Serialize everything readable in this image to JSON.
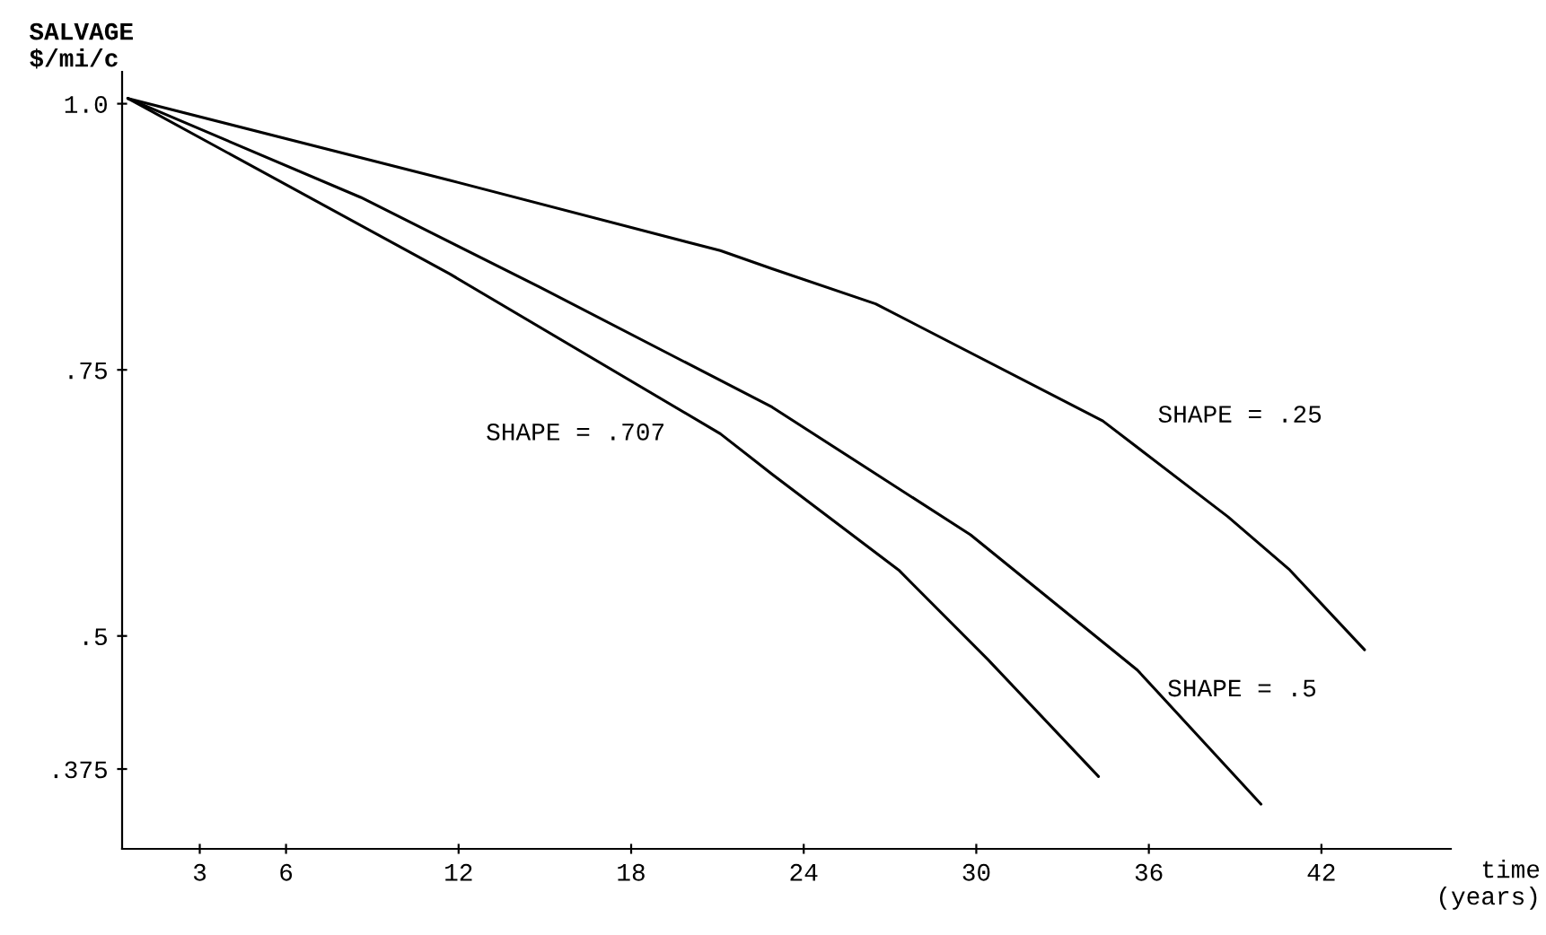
{
  "chart_data": {
    "type": "line",
    "xlabel": "time\n(years)",
    "ylabel": "SALVAGE\n$/mi/c",
    "xlim": [
      0.3,
      46.5
    ],
    "ylim": [
      0.3,
      1.03
    ],
    "xticks": [
      3,
      6,
      12,
      18,
      24,
      30,
      36,
      42
    ],
    "yticks": [
      {
        "value": 1.0,
        "label": "1.0"
      },
      {
        "value": 0.75,
        "label": ".75"
      },
      {
        "value": 0.5,
        "label": ".5"
      },
      {
        "value": 0.375,
        "label": ".375"
      }
    ],
    "grid": false,
    "marker": "none",
    "line_style": "solid",
    "series": [
      {
        "name": "SHAPE = .25",
        "color": "#000000",
        "x": [
          0.5,
          11.7,
          21.1,
          22.9,
          26.5,
          34.4,
          38.75,
          40.9,
          43.5
        ],
        "values": [
          1.005,
          0.928,
          0.862,
          0.845,
          0.812,
          0.702,
          0.612,
          0.562,
          0.487
        ]
      },
      {
        "name": "SHAPE = .5",
        "color": "#000000",
        "x": [
          0.5,
          8.6,
          14.8,
          22.9,
          29.8,
          35.6,
          39.9
        ],
        "values": [
          1.005,
          0.912,
          0.828,
          0.715,
          0.595,
          0.468,
          0.342
        ]
      },
      {
        "name": "SHAPE = .707",
        "color": "#000000",
        "x": [
          0.5,
          11.7,
          21.1,
          22.9,
          27.3,
          30.4,
          34.25
        ],
        "values": [
          1.005,
          0.84,
          0.69,
          0.652,
          0.562,
          0.478,
          0.368
        ]
      }
    ]
  }
}
